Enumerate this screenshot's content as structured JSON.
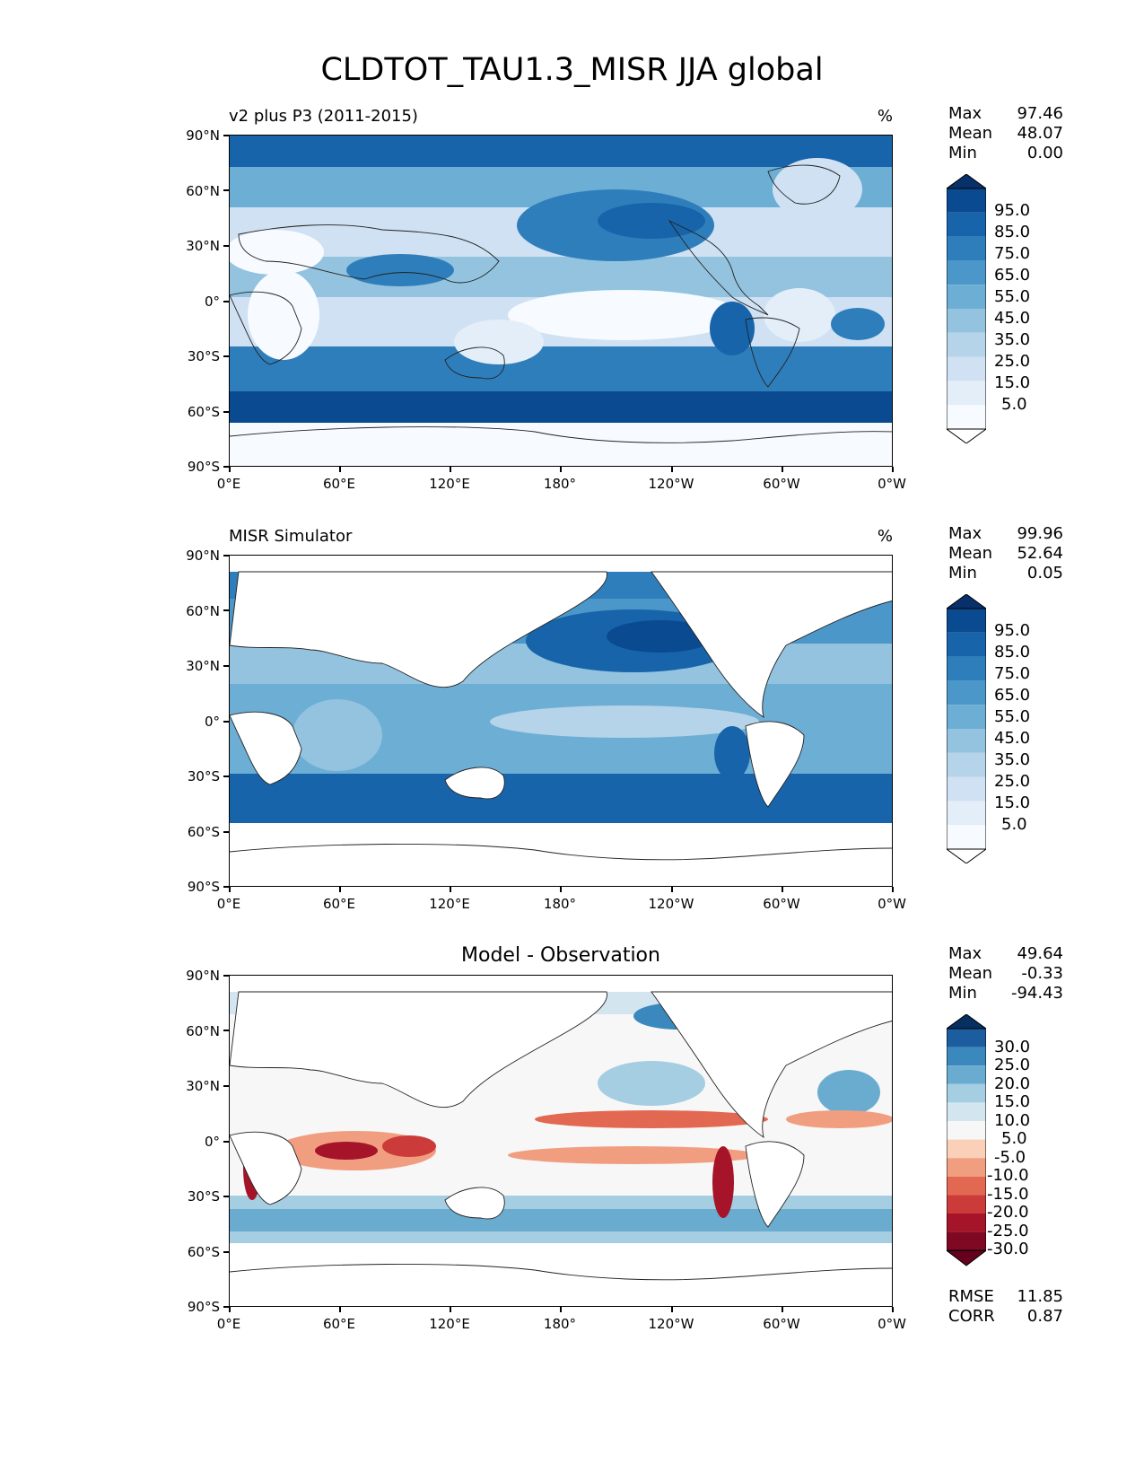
{
  "title": "CLDTOT_TAU1.3_MISR JJA global",
  "axes": {
    "lat_labels": [
      "90°N",
      "60°N",
      "30°N",
      "0°",
      "30°S",
      "60°S",
      "90°S"
    ],
    "lon_labels": [
      "0°E",
      "60°E",
      "120°E",
      "180°",
      "120°W",
      "60°W",
      "0°W"
    ]
  },
  "panels": [
    {
      "subtitle": "v2 plus P3 (2011-2015)",
      "center_title": "",
      "units": "%",
      "stats": [
        {
          "label": "Max",
          "value": "97.46"
        },
        {
          "label": "Mean",
          "value": "48.07"
        },
        {
          "label": "Min",
          "value": "0.00"
        }
      ],
      "colorbar_labels": [
        "95.0",
        "85.0",
        "75.0",
        "65.0",
        "55.0",
        "45.0",
        "35.0",
        "25.0",
        "15.0",
        "5.0"
      ],
      "extra_stats": []
    },
    {
      "subtitle": "MISR Simulator",
      "center_title": "",
      "units": "%",
      "stats": [
        {
          "label": "Max",
          "value": "99.96"
        },
        {
          "label": "Mean",
          "value": "52.64"
        },
        {
          "label": "Min",
          "value": "0.05"
        }
      ],
      "colorbar_labels": [
        "95.0",
        "85.0",
        "75.0",
        "65.0",
        "55.0",
        "45.0",
        "35.0",
        "25.0",
        "15.0",
        "5.0"
      ],
      "extra_stats": []
    },
    {
      "subtitle": "",
      "center_title": "Model - Observation",
      "units": "",
      "stats": [
        {
          "label": "Max",
          "value": "49.64"
        },
        {
          "label": "Mean",
          "value": "-0.33"
        },
        {
          "label": "Min",
          "value": "-94.43"
        }
      ],
      "colorbar_labels": [
        "30.0",
        "25.0",
        "20.0",
        "15.0",
        "10.0",
        "5.0",
        "-5.0",
        "-10.0",
        "-15.0",
        "-20.0",
        "-25.0",
        "-30.0"
      ],
      "extra_stats": [
        {
          "label": "RMSE",
          "value": "11.85"
        },
        {
          "label": "CORR",
          "value": "0.87"
        }
      ]
    }
  ],
  "colors": {
    "blues": [
      "#f7fbff",
      "#e3eef9",
      "#cfe1f2",
      "#b5d4e9",
      "#93c3df",
      "#6daed5",
      "#4b97c9",
      "#2f7ebc",
      "#1864aa",
      "#0a4a90",
      "#08306b"
    ],
    "diverging": [
      "#67001f",
      "#a51429",
      "#cb3b3a",
      "#e26851",
      "#f19e80",
      "#fbd0b8",
      "#f7f7f7",
      "#d3e6f0",
      "#a5cee3",
      "#6aacd0",
      "#3b88be",
      "#1c5d9f",
      "#053061"
    ]
  }
}
